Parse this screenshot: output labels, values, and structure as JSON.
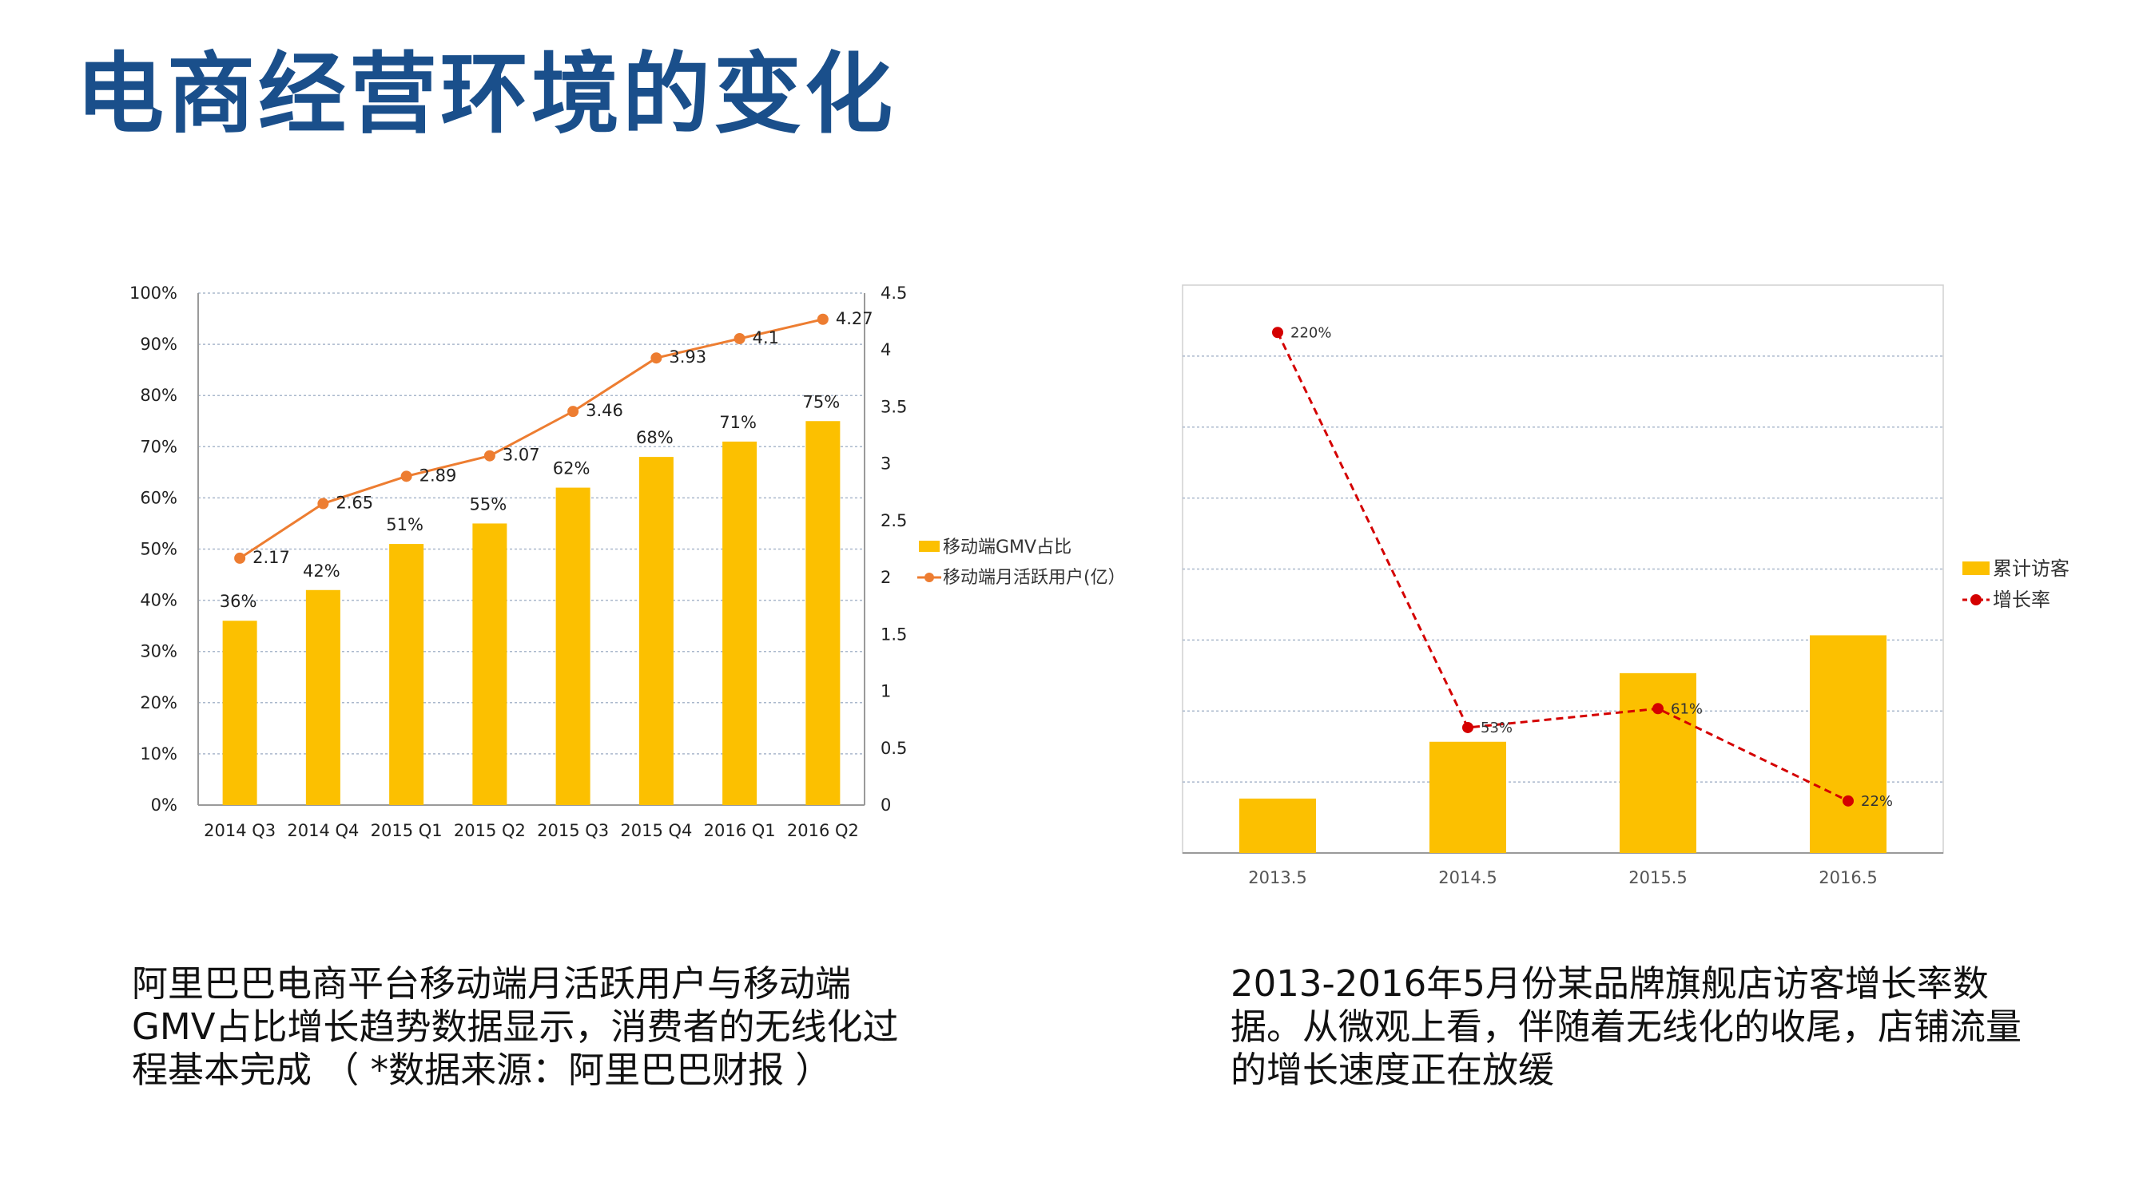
{
  "page": {
    "title": "电商经营环境的变化",
    "caption_left": "阿里巴巴电商平台移动端月活跃用户与移动端GMV占比增长趋势数据显示，消费者的无线化过程基本完成 （ *数据来源：阿里巴巴财报 ）",
    "caption_right": "2013-2016年5月份某品牌旗舰店访客增长率数据。从微观上看，伴随着无线化的收尾，店铺流量的增长速度正在放缓"
  },
  "colors": {
    "title": "#1a4f8b",
    "bar": "#fcc000",
    "line_left": "#ed7d31",
    "line_right": "#d40000",
    "grid": "#aab8cc",
    "axis": "#9a9a9a"
  },
  "chart_data": [
    {
      "type": "bar+line",
      "categories": [
        "2014 Q3",
        "2014 Q4",
        "2015 Q1",
        "2015 Q2",
        "2015 Q3",
        "2015 Q4",
        "2016 Q1",
        "2016 Q2"
      ],
      "series": [
        {
          "name": "移动端GMV占比",
          "type": "bar",
          "axis": "left",
          "values": [
            36,
            42,
            51,
            55,
            62,
            68,
            71,
            75
          ],
          "labels": [
            "36%",
            "42%",
            "51%",
            "55%",
            "62%",
            "68%",
            "71%",
            "75%"
          ]
        },
        {
          "name": "移动端月活跃用户(亿）",
          "type": "line",
          "axis": "right",
          "values": [
            2.17,
            2.65,
            2.89,
            3.07,
            3.46,
            3.93,
            4.1,
            4.27
          ],
          "labels": [
            "2.17",
            "2.65",
            "2.89",
            "3.07",
            "3.46",
            "3.93",
            "4.1",
            "4.27"
          ]
        }
      ],
      "y_left": {
        "range": [
          0,
          100
        ],
        "ticks": [
          "0%",
          "10%",
          "20%",
          "30%",
          "40%",
          "50%",
          "60%",
          "70%",
          "80%",
          "90%",
          "100%"
        ]
      },
      "y_right": {
        "range": [
          0,
          4.5
        ],
        "ticks": [
          "0",
          "0.5",
          "1",
          "1.5",
          "2",
          "2.5",
          "3",
          "3.5",
          "4",
          "4.5"
        ]
      },
      "grid": true,
      "legend": "right"
    },
    {
      "type": "bar+line",
      "categories": [
        "2013.5",
        "2014.5",
        "2015.5",
        "2016.5"
      ],
      "series": [
        {
          "name": "累计访客",
          "type": "bar",
          "values": [
            23,
            47,
            76,
            92
          ]
        },
        {
          "name": "增长率",
          "type": "line",
          "style": "dashed",
          "values": [
            220,
            53,
            61,
            22
          ],
          "labels": [
            "220%",
            "53%",
            "61%",
            "22%"
          ]
        }
      ],
      "y_range": [
        0,
        240
      ],
      "grid": true,
      "legend": "right"
    }
  ]
}
